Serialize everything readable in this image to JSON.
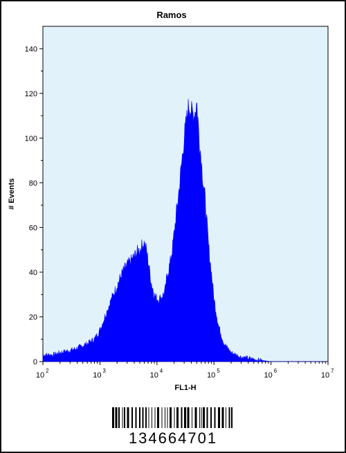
{
  "chart_data": {
    "type": "area",
    "title": "Ramos",
    "xlabel": "FL1-H",
    "ylabel": "# Events",
    "xscale": "log",
    "xlim": [
      100,
      10000000
    ],
    "ylim": [
      0,
      150
    ],
    "x_ticks": [
      {
        "base": "10",
        "exp": "2"
      },
      {
        "base": "10",
        "exp": "3"
      },
      {
        "base": "10",
        "exp": "4"
      },
      {
        "base": "10",
        "exp": "5"
      },
      {
        "base": "10",
        "exp": "6"
      },
      {
        "base": "10",
        "exp": "7"
      }
    ],
    "y_ticks": [
      "0",
      "20",
      "40",
      "60",
      "80",
      "100",
      "120",
      "140"
    ],
    "fill_color": "#0000ff",
    "background": "#e2f2fb",
    "series": [
      {
        "x": [
          100,
          150,
          200,
          300,
          400,
          600,
          800,
          1000,
          1300,
          1600,
          2000,
          2500,
          3000,
          3500,
          4000,
          4500,
          5000,
          5500,
          6000,
          6500,
          7000,
          8000,
          9000,
          10000,
          11000,
          12000,
          13000,
          14000,
          15000,
          17000,
          19000,
          21000,
          24000,
          27000,
          30000,
          33000,
          36000,
          40000,
          45000,
          50000,
          55000,
          60000,
          65000,
          70000,
          75000,
          80000,
          90000,
          100000,
          120000,
          150000,
          200000,
          300000,
          500000,
          1000000,
          10000000
        ],
        "y": [
          3,
          3,
          4,
          5,
          6,
          8,
          10,
          14,
          22,
          28,
          34,
          40,
          43,
          45,
          47,
          49,
          50,
          52,
          53,
          50,
          45,
          35,
          30,
          28,
          28,
          29,
          30,
          32,
          38,
          44,
          52,
          62,
          75,
          88,
          100,
          108,
          115,
          112,
          110,
          116,
          100,
          90,
          80,
          72,
          62,
          52,
          40,
          28,
          16,
          8,
          4,
          2,
          1,
          0,
          0
        ]
      }
    ]
  },
  "barcode": {
    "number": "134664701"
  }
}
